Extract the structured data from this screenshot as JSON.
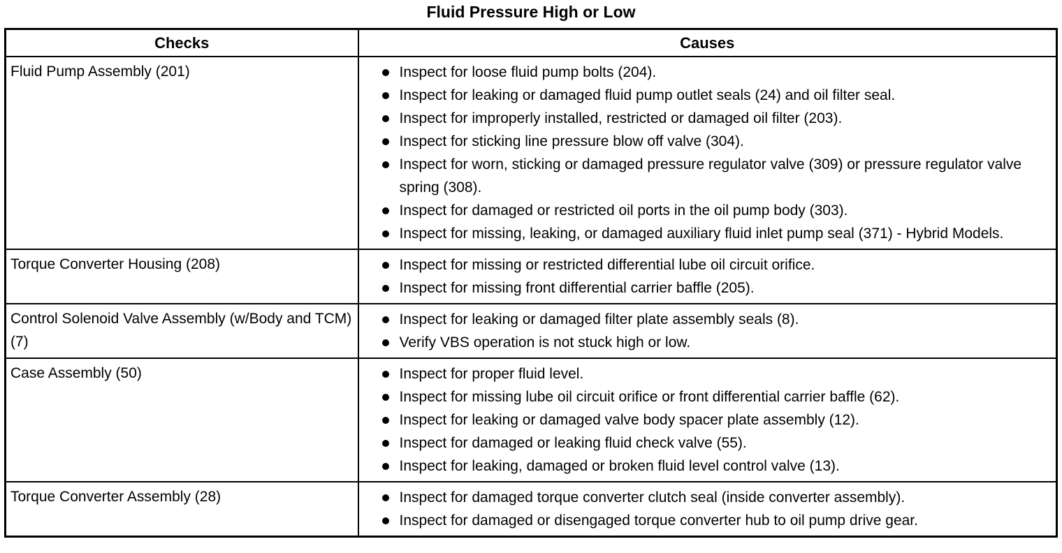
{
  "page": {
    "title": "Fluid Pressure High or Low"
  },
  "table": {
    "headers": [
      "Checks",
      "Causes"
    ],
    "rows": [
      {
        "check": "Fluid Pump Assembly (201)",
        "causes": [
          "Inspect for loose fluid pump bolts (204).",
          "Inspect for leaking or damaged fluid pump outlet seals (24) and oil filter seal.",
          "Inspect for improperly installed, restricted or damaged oil filter (203).",
          "Inspect for sticking line pressure blow off valve (304).",
          "Inspect for worn, sticking or damaged pressure regulator valve (309) or pressure regulator valve spring (308).",
          "Inspect for damaged or restricted oil ports in the oil pump body (303).",
          "Inspect for missing, leaking, or damaged auxiliary fluid inlet pump seal (371) - Hybrid Models."
        ]
      },
      {
        "check": "Torque Converter Housing (208)",
        "causes": [
          "Inspect for missing or restricted differential lube oil circuit orifice.",
          "Inspect for missing front differential carrier baffle (205)."
        ]
      },
      {
        "check": "Control Solenoid Valve Assembly (w/Body and TCM) (7)",
        "causes": [
          "Inspect for leaking or damaged filter plate assembly seals (8).",
          "Verify VBS operation is not stuck high or low."
        ]
      },
      {
        "check": "Case Assembly (50)",
        "causes": [
          "Inspect for proper fluid level.",
          "Inspect for missing lube oil circuit orifice or front differential carrier baffle (62).",
          "Inspect for leaking or damaged valve body spacer plate assembly (12).",
          "Inspect for damaged or leaking fluid check valve (55).",
          "Inspect for leaking, damaged or broken fluid level control valve (13)."
        ]
      },
      {
        "check": "Torque Converter Assembly (28)",
        "causes": [
          "Inspect for damaged torque converter clutch seal (inside converter assembly).",
          "Inspect for damaged or disengaged torque converter hub to oil pump drive gear."
        ]
      }
    ]
  }
}
